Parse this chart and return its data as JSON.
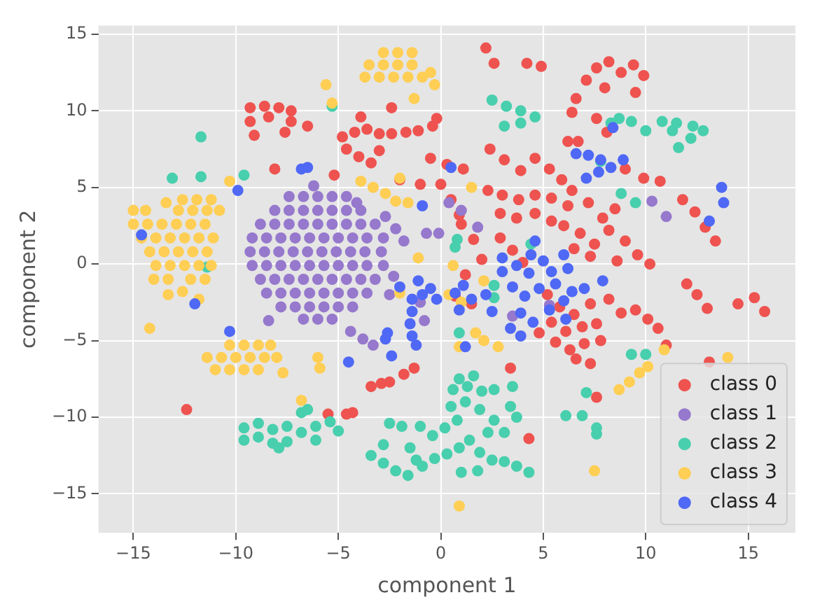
{
  "chart_data": {
    "type": "scatter",
    "xlabel": "component 1",
    "ylabel": "component 2",
    "xlim": [
      -16.7,
      17.3
    ],
    "ylim": [
      -17.55,
      15.57
    ],
    "xticks": [
      -15,
      -10,
      -5,
      0,
      5,
      10,
      15
    ],
    "yticks": [
      -15,
      -10,
      -5,
      0,
      5,
      10,
      15
    ],
    "grid": true,
    "legend": "bottom right",
    "marker": "circle",
    "series": [
      {
        "name": "class 0",
        "color": "#ee5350",
        "x": [
          -9.3,
          -8.6,
          -7.9,
          -7.3,
          -9.3,
          -7.3,
          -9.1,
          -7.6,
          -8.4,
          -6.5,
          -8.1,
          -5.2,
          -4.8,
          -4.2,
          -3.6,
          -3.0,
          -2.4,
          -1.7,
          -1.1,
          -0.4,
          -0.2,
          -4.6,
          -4.0,
          -3.4,
          -3.0,
          -3.9,
          -2.4,
          -2.0,
          2.2,
          2.6,
          4.2,
          4.9,
          7.1,
          7.6,
          8.2,
          8.8,
          9.4,
          9.9,
          8.0,
          9.5,
          6.6,
          6.4,
          6.2,
          6.7,
          7.6,
          8.1,
          -0.5,
          0.3,
          1.1,
          0.0,
          0.5,
          0.9,
          2.4,
          3.1,
          3.9,
          4.6,
          5.3,
          5.9,
          2.3,
          3.0,
          3.8,
          4.6,
          5.4,
          6.2,
          2.9,
          3.7,
          4.6,
          5.4,
          6.4,
          7.2,
          7.9,
          8.5,
          6.0,
          6.8,
          7.5,
          8.2,
          9.0,
          9.6,
          10.2,
          8.6,
          7.3,
          6.5,
          9.0,
          9.9,
          10.7,
          11.8,
          12.4,
          12.9,
          13.4,
          1.0,
          1.6,
          2.0,
          1.2,
          2.9,
          3.5,
          4.0,
          -1.0,
          0.7,
          1.5,
          5.2,
          5.8,
          6.5,
          7.3,
          5.4,
          6.1,
          6.9,
          7.6,
          5.6,
          6.3,
          7.0,
          7.8,
          6.6,
          7.3,
          4.8,
          8.2,
          8.8,
          9.5,
          10.1,
          10.6,
          12.0,
          12.5,
          13.0,
          14.5,
          15.3,
          15.8,
          13.1,
          11.0,
          7.6,
          4.3,
          3.4,
          -2.5,
          -1.8,
          -1.3,
          -3.4,
          -2.9,
          -12.4,
          -5.5,
          -4.6,
          -4.3
        ],
        "values": [
          10.2,
          10.3,
          10.2,
          10.0,
          9.3,
          9.3,
          8.4,
          8.6,
          9.6,
          9.0,
          6.2,
          5.8,
          8.3,
          8.6,
          8.8,
          8.5,
          8.5,
          8.6,
          8.7,
          9.0,
          9.5,
          7.5,
          7.0,
          6.6,
          7.4,
          9.6,
          10.2,
          5.5,
          14.1,
          13.1,
          13.1,
          12.9,
          12.0,
          12.8,
          13.2,
          12.5,
          13.0,
          12.3,
          11.5,
          11.2,
          10.8,
          9.9,
          8.0,
          8.0,
          9.5,
          8.6,
          6.9,
          6.5,
          6.2,
          5.2,
          4.2,
          3.2,
          7.5,
          6.8,
          6.1,
          6.9,
          6.2,
          5.5,
          4.8,
          4.5,
          4.2,
          4.5,
          4.3,
          3.8,
          3.3,
          3.0,
          3.3,
          2.8,
          4.8,
          4.0,
          3.0,
          3.6,
          2.5,
          2.0,
          1.3,
          2.2,
          1.5,
          0.6,
          0.0,
          0.2,
          0.5,
          1.0,
          6.2,
          5.6,
          5.4,
          4.2,
          3.4,
          2.4,
          1.5,
          2.6,
          1.6,
          0.3,
          -0.7,
          1.7,
          0.9,
          0.1,
          5.2,
          -2.1,
          -2.6,
          -2.0,
          -2.8,
          -3.3,
          -2.6,
          -3.8,
          -4.4,
          -4.1,
          -3.9,
          -5.1,
          -5.6,
          -5.2,
          -5.0,
          -6.2,
          -6.5,
          -4.5,
          -2.3,
          -3.2,
          -3.0,
          -3.6,
          -4.2,
          -1.3,
          -2.0,
          -2.9,
          -2.6,
          -2.2,
          -3.1,
          -6.4,
          -5.3,
          -8.7,
          -11.4,
          -6.8,
          -7.7,
          -7.2,
          -6.8,
          -8.0,
          -7.8,
          -9.5,
          -9.8,
          -9.8,
          -9.7
        ]
      },
      {
        "name": "class 1",
        "color": "#9678cd",
        "x": [
          -7.4,
          -6.7,
          -6,
          -5.3,
          -4.6,
          -8.1,
          -7.4,
          -6.7,
          -6,
          -5.3,
          -4.6,
          -3.9,
          -8.8,
          -8.1,
          -7.4,
          -6.7,
          -6,
          -5.3,
          -4.6,
          -3.9,
          -3.2,
          -9.2,
          -8.5,
          -7.8,
          -7.1,
          -6.4,
          -5.7,
          -5,
          -4.3,
          -3.6,
          -2.8,
          -9.3,
          -8.6,
          -7.9,
          -7.2,
          -6.5,
          -5.8,
          -5.1,
          -4.4,
          -3.7,
          -2.9,
          -9.2,
          -8.5,
          -7.8,
          -7.1,
          -6.4,
          -5.7,
          -5,
          -4.3,
          -3.6,
          -2.8,
          -8.8,
          -8.1,
          -7.4,
          -6.7,
          -6,
          -5.3,
          -4.6,
          -3.9,
          -3.2,
          -8.5,
          -7.8,
          -7.1,
          -6.4,
          -5.7,
          -5,
          -4.3,
          -3.6,
          -7.8,
          -7.1,
          -6.4,
          -5.7,
          -5,
          -4.3,
          -6.7,
          -6,
          -5.3,
          -6.2,
          -4.1,
          -2.7,
          -2.2,
          -1.8,
          0.4,
          1.0,
          1.8,
          -0.7,
          -0.1,
          10.3,
          11.0,
          3.5,
          5.3,
          -4.4,
          -3.8,
          -3.3,
          -8.4,
          -1.0,
          -0.8,
          -2.5,
          -2.3
        ],
        "values": [
          4.4,
          4.4,
          4.4,
          4.4,
          4.4,
          3.5,
          3.5,
          3.5,
          3.5,
          3.5,
          3.5,
          3.5,
          2.6,
          2.6,
          2.6,
          2.6,
          2.6,
          2.6,
          2.6,
          2.6,
          2.6,
          1.7,
          1.7,
          1.7,
          1.7,
          1.7,
          1.7,
          1.7,
          1.7,
          1.7,
          1.7,
          0.8,
          0.8,
          0.8,
          0.8,
          0.8,
          0.8,
          0.8,
          0.8,
          0.8,
          0.8,
          -0.1,
          -0.1,
          -0.1,
          -0.1,
          -0.1,
          -0.1,
          -0.1,
          -0.1,
          -0.1,
          -0.1,
          -1.0,
          -1.0,
          -1.0,
          -1.0,
          -1.0,
          -1.0,
          -1.0,
          -1.0,
          -1.0,
          -1.9,
          -1.9,
          -1.9,
          -1.9,
          -1.9,
          -1.9,
          -1.9,
          -1.9,
          -2.8,
          -2.8,
          -2.8,
          -2.8,
          -2.8,
          -2.8,
          -3.6,
          -3.6,
          -3.6,
          5.1,
          4.0,
          3.1,
          2.3,
          1.5,
          4.0,
          3.5,
          2.4,
          2.0,
          2.0,
          4.1,
          3.1,
          -3.4,
          -2.7,
          -4.4,
          -4.9,
          -5.3,
          -3.7,
          -2.5,
          -3.7,
          -2.0,
          -0.8
        ]
      },
      {
        "name": "class 2",
        "color": "#48cfad",
        "x": [
          -9.6,
          -9.6,
          -8.9,
          -8.9,
          -8.2,
          -8.2,
          -7.5,
          -7.5,
          -6.8,
          -6.8,
          -6.1,
          -6.1,
          -5.4,
          -5.0,
          -7.9,
          -6.5,
          -2.5,
          -1.9,
          -1.5,
          -1.2,
          -3.4,
          -2.8,
          -2.2,
          -1.6,
          -0.9,
          -0.3,
          0.3,
          0.9,
          1.4,
          1.9,
          2.5,
          3.1,
          3.7,
          4.3,
          1.0,
          1.8,
          -0.4,
          0.2,
          0.8,
          0.5,
          1.2,
          1.9,
          0.6,
          1.3,
          2.0,
          0.9,
          1.6,
          2.6,
          3.5,
          3.4,
          3.7,
          2.6,
          2.3,
          3.1,
          -1.0,
          -2.8,
          2.5,
          3.2,
          3.9,
          4.6,
          3.9,
          3.1,
          8.3,
          8.7,
          9.3,
          10.0,
          10.8,
          11.5,
          12.3,
          12.8,
          12.2,
          11.6,
          11.3,
          7.8,
          8.8,
          9.5,
          0.8,
          0.7,
          4.4,
          2.6,
          2.6,
          -13.1,
          -11.7,
          -11.7,
          -9.6,
          -11.4,
          -5.3,
          9.3,
          10.0,
          7.1,
          6.1,
          6.9,
          7.6,
          7.6,
          0.9
        ],
        "values": [
          -10.7,
          -11.5,
          -10.4,
          -11.3,
          -10.8,
          -11.7,
          -10.6,
          -11.6,
          -11.0,
          -9.7,
          -10.6,
          -11.5,
          -10.3,
          -10.9,
          -12.0,
          -9.5,
          -10.4,
          -10.6,
          -12.0,
          -12.8,
          -12.5,
          -13.0,
          -13.5,
          -13.8,
          -13.2,
          -12.7,
          -12.4,
          -12.0,
          -11.5,
          -12.3,
          -12.8,
          -12.9,
          -13.2,
          -13.6,
          -13.6,
          -13.5,
          -11.2,
          -10.7,
          -10.2,
          -9.3,
          -9.0,
          -9.5,
          -8.2,
          -8.0,
          -8.3,
          -7.5,
          -7.3,
          -8.2,
          -8.0,
          -9.3,
          -10.0,
          -10.2,
          -11.0,
          -11.0,
          -10.6,
          -11.8,
          10.7,
          10.3,
          10.0,
          9.6,
          9.2,
          9.0,
          9.2,
          9.5,
          9.3,
          8.7,
          9.3,
          9.2,
          9.0,
          8.7,
          8.2,
          7.6,
          8.7,
          6.7,
          4.6,
          4.0,
          1.6,
          1.1,
          1.3,
          -1.4,
          -2.2,
          5.6,
          5.7,
          8.3,
          5.8,
          -0.2,
          10.3,
          -5.9,
          -5.9,
          -8.4,
          -9.9,
          -9.9,
          -10.7,
          -11.1,
          -4.5
        ]
      },
      {
        "name": "class 3",
        "color": "#ffce54",
        "x": [
          -11.9,
          -11.2,
          -12.6,
          -15,
          -14.4,
          -12.8,
          -12.1,
          -11.4,
          -10.8,
          -15,
          -14.3,
          -13.6,
          -12.9,
          -12.2,
          -11.5,
          -14.6,
          -13.9,
          -13.2,
          -12.5,
          -11.8,
          -11.1,
          -14.2,
          -13.5,
          -12.8,
          -12.1,
          -11.4,
          -13.9,
          -13.2,
          -12.5,
          -11.8,
          -11.2,
          -14.0,
          -13.3,
          -12.2,
          -11.5,
          -14.2,
          -13.3,
          -12.6,
          -11.8,
          -10.3,
          -13.4,
          -10.3,
          -9.6,
          -8.9,
          -8.3,
          -11.4,
          -10.7,
          -10,
          -9.3,
          -8.6,
          -8.0,
          -11,
          -10.3,
          -9.6,
          -8.9,
          -7.7,
          -6.8,
          -6,
          -5.9,
          -2.8,
          -2.1,
          -1.4,
          -3.5,
          -2.8,
          -2.1,
          -1.4,
          -3.7,
          -3.0,
          -2.3,
          -1.6,
          -0.9,
          -5.6,
          -5.3,
          -1.3,
          -0.5,
          -0.3,
          -3.9,
          -3.3,
          -2.7,
          -2.2,
          -1.6,
          -2.0,
          1.5,
          -1.1,
          0.6,
          2.1,
          -2.0,
          1.7,
          2.1,
          2.8,
          0.9,
          8.7,
          9.2,
          9.7,
          10.1,
          10.9,
          14.0,
          7.5,
          0.9,
          1.0,
          0.4
        ],
        "values": [
          4.2,
          4.2,
          4.2,
          3.5,
          3.5,
          3.5,
          3.5,
          3.5,
          3.5,
          2.6,
          2.6,
          2.6,
          2.6,
          2.6,
          2.6,
          1.7,
          1.7,
          1.7,
          1.7,
          1.7,
          1.7,
          0.8,
          0.8,
          0.8,
          0.8,
          0.8,
          -0.1,
          -0.1,
          -0.1,
          -0.1,
          -0.1,
          -1.0,
          -1.0,
          -1.0,
          -1.0,
          -4.2,
          -2.0,
          -1.8,
          -2.3,
          5.4,
          4.0,
          -5.3,
          -5.3,
          -5.3,
          -5.3,
          -6.1,
          -6.1,
          -6.1,
          -6.1,
          -6.1,
          -6.1,
          -6.9,
          -6.9,
          -6.9,
          -6.9,
          -7.1,
          -8.9,
          -6.1,
          -6.8,
          13.8,
          13.8,
          13.8,
          13.0,
          13.0,
          13.0,
          13.0,
          12.2,
          12.2,
          12.2,
          12.2,
          12.2,
          11.7,
          10.5,
          10.8,
          12.5,
          11.7,
          5.4,
          5.0,
          4.6,
          4.1,
          4.0,
          5.6,
          5.0,
          0.4,
          -0.1,
          -1.1,
          -1.9,
          -4.5,
          -5.0,
          -5.4,
          -5.4,
          -8.2,
          -7.7,
          -7.1,
          -6.7,
          -5.6,
          -6.1,
          -13.5,
          -15.8,
          -2.5,
          -2.0
        ]
      },
      {
        "name": "class 4",
        "color": "#4f68f5",
        "x": [
          -14.6,
          -12,
          -9.9,
          -6.8,
          -6.5,
          -10.3,
          -4.5,
          -2.7,
          -2.6,
          -1.4,
          -1.4,
          -1.5,
          -1.4,
          -1.2,
          -1.1,
          -0.9,
          -2.0,
          -0.5,
          -0.2,
          0.5,
          -0.9,
          6.6,
          7.2,
          7.8,
          7.1,
          7.7,
          8.3,
          8.9,
          8.4,
          13.7,
          13.8,
          13.1,
          4.6,
          3.0,
          3.0,
          3.7,
          4.4,
          5.0,
          5.4,
          6.0,
          6.2,
          4.3,
          7.9,
          1.1,
          0.7,
          1.5,
          2.2,
          2.5,
          0.9,
          3.5,
          4.1,
          4.8,
          5.6,
          6.4,
          6.0,
          3.9,
          3.4,
          3.9,
          4.5,
          5.3,
          6.1,
          7.0,
          -2.4,
          1.2
        ],
        "values": [
          1.9,
          -2.6,
          4.8,
          6.2,
          6.3,
          -4.4,
          -6.4,
          -4.9,
          -4.5,
          -2.3,
          -3.1,
          -3.9,
          -4.7,
          -5.3,
          -1.1,
          -2.0,
          -1.5,
          -1.6,
          -2.3,
          6.3,
          3.8,
          7.2,
          7.1,
          6.8,
          5.6,
          6.0,
          6.3,
          6.8,
          8.9,
          5.0,
          4.0,
          2.8,
          1.5,
          0.4,
          -0.5,
          -0.1,
          0.6,
          0.2,
          -0.5,
          0.6,
          -0.3,
          -0.6,
          -1.1,
          -1.4,
          -1.9,
          -2.3,
          -2.0,
          -3.1,
          -3.0,
          -1.5,
          -2.1,
          -1.6,
          -1.3,
          -1.8,
          -2.4,
          -3.2,
          -4.2,
          -4.7,
          -3.8,
          -3.0,
          -3.6,
          -1.6,
          -6.0,
          -5.4
        ]
      }
    ]
  }
}
